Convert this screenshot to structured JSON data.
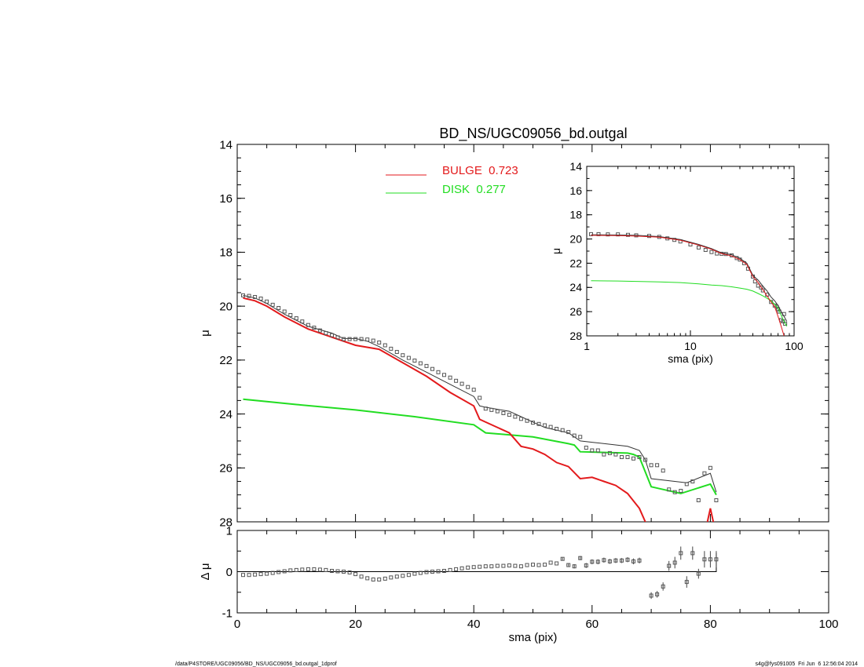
{
  "figure": {
    "title": "BD_NS/UGC09056_bd.outgal",
    "footer_left": "/data/P4STORE/UGC09056/BD_NS/UGC09056_bd.outgal_1dprof",
    "footer_right": "s4g@fys091005  Fri Jun  6 12:56:04 2014"
  },
  "colors": {
    "bulge": "#e31a1c",
    "disk": "#22dd22",
    "model": "#333333",
    "data": "#555555"
  },
  "chart_data": [
    {
      "id": "main",
      "type": "line",
      "title": "BD_NS/UGC09056_bd.outgal",
      "xlabel": "",
      "ylabel": "μ",
      "xlim": [
        0,
        100
      ],
      "ylim": [
        28,
        14
      ],
      "y_inverted": true,
      "xticks": [],
      "yticks": [
        14,
        16,
        18,
        20,
        22,
        24,
        26,
        28
      ],
      "legend": [
        {
          "label": "BULGE  0.723",
          "color": "#e31a1c"
        },
        {
          "label": "DISK  0.277",
          "color": "#22dd22"
        }
      ],
      "series": [
        {
          "name": "BULGE",
          "x": [
            1,
            3,
            5,
            8,
            12,
            16,
            20,
            24,
            28,
            32,
            36,
            40,
            41,
            42,
            46,
            48,
            50,
            52,
            54,
            56,
            58,
            60,
            62,
            64,
            66,
            68,
            69,
            70,
            79,
            80,
            81
          ],
          "y": [
            19.7,
            19.8,
            20.0,
            20.4,
            20.85,
            21.15,
            21.45,
            21.6,
            22.1,
            22.6,
            23.2,
            23.7,
            24.2,
            24.3,
            24.7,
            25.2,
            25.3,
            25.5,
            25.8,
            25.95,
            26.4,
            26.35,
            26.5,
            26.65,
            26.95,
            27.5,
            28.0,
            28.5,
            28.5,
            27.5,
            28.5
          ]
        },
        {
          "name": "DISK",
          "x": [
            1,
            10,
            20,
            30,
            40,
            42,
            50,
            56,
            57,
            58,
            66,
            67,
            68,
            70,
            75,
            80,
            81
          ],
          "y": [
            23.45,
            23.65,
            23.85,
            24.1,
            24.4,
            24.7,
            24.85,
            25.1,
            25.15,
            25.4,
            25.45,
            25.5,
            25.6,
            26.7,
            26.95,
            26.6,
            27.0
          ]
        },
        {
          "name": "model",
          "x": [
            1,
            3,
            5,
            8,
            12,
            16,
            18,
            20,
            22,
            24,
            28,
            32,
            36,
            40,
            41,
            42,
            46,
            48,
            50,
            52,
            56,
            58,
            60,
            66,
            68,
            69,
            70,
            76,
            80,
            81
          ],
          "y": [
            19.6,
            19.7,
            19.9,
            20.3,
            20.75,
            21.0,
            21.2,
            21.2,
            21.3,
            21.5,
            22.0,
            22.45,
            22.9,
            23.35,
            23.7,
            23.75,
            23.9,
            24.1,
            24.3,
            24.5,
            24.7,
            25.0,
            25.05,
            25.2,
            25.35,
            25.7,
            26.4,
            26.55,
            26.2,
            26.9
          ]
        },
        {
          "name": "data",
          "x": [
            1,
            2,
            3,
            4,
            5,
            6,
            7,
            8,
            9,
            10,
            11,
            12,
            13,
            14,
            15,
            16,
            17,
            18,
            19,
            20,
            21,
            22,
            23,
            24,
            25,
            26,
            27,
            28,
            29,
            30,
            31,
            32,
            33,
            34,
            35,
            36,
            37,
            38,
            39,
            40,
            41,
            42,
            43,
            44,
            45,
            46,
            47,
            48,
            49,
            50,
            51,
            52,
            53,
            54,
            55,
            56,
            57,
            58,
            59,
            60,
            61,
            62,
            63,
            64,
            65,
            66,
            67,
            68,
            69,
            70,
            71,
            72,
            73,
            74,
            75,
            76,
            77,
            78,
            79,
            80,
            81
          ],
          "y": [
            19.6,
            19.62,
            19.66,
            19.72,
            19.83,
            19.95,
            20.07,
            20.2,
            20.33,
            20.45,
            20.57,
            20.7,
            20.8,
            20.9,
            21.0,
            21.08,
            21.16,
            21.22,
            21.22,
            21.22,
            21.22,
            21.24,
            21.28,
            21.35,
            21.45,
            21.58,
            21.7,
            21.82,
            21.92,
            22.02,
            22.12,
            22.22,
            22.33,
            22.45,
            22.55,
            22.65,
            22.77,
            22.88,
            23.0,
            23.1,
            23.4,
            23.8,
            23.85,
            23.9,
            23.97,
            24.03,
            24.1,
            24.18,
            24.25,
            24.32,
            24.37,
            24.42,
            24.48,
            24.55,
            24.6,
            24.67,
            24.8,
            24.85,
            25.25,
            25.35,
            25.35,
            25.5,
            25.45,
            25.5,
            25.6,
            25.6,
            25.65,
            25.6,
            25.7,
            25.9,
            25.9,
            26.1,
            26.8,
            26.9,
            26.85,
            26.6,
            26.5,
            27.2,
            26.2,
            26.0,
            27.2
          ]
        }
      ]
    },
    {
      "id": "residual",
      "type": "scatter",
      "xlabel": "sma (pix)",
      "ylabel": "Δ μ",
      "xlim": [
        0,
        100
      ],
      "ylim": [
        -1,
        1
      ],
      "xticks": [
        0,
        20,
        40,
        60,
        80,
        100
      ],
      "yticks": [
        -1,
        0,
        1
      ],
      "series": [
        {
          "name": "residual",
          "x": [
            1,
            2,
            3,
            4,
            5,
            6,
            7,
            8,
            9,
            10,
            11,
            12,
            13,
            14,
            15,
            16,
            17,
            18,
            19,
            20,
            21,
            22,
            23,
            24,
            25,
            26,
            27,
            28,
            29,
            30,
            31,
            32,
            33,
            34,
            35,
            36,
            37,
            38,
            39,
            40,
            41,
            42,
            43,
            44,
            45,
            46,
            47,
            48,
            49,
            50,
            51,
            52,
            53,
            54,
            55,
            56,
            57,
            58,
            59,
            60,
            61,
            62,
            63,
            64,
            65,
            66,
            67,
            68,
            69,
            70,
            71,
            72,
            73,
            74,
            75,
            76,
            77,
            78,
            79,
            80,
            81
          ],
          "y": [
            -0.08,
            -0.08,
            -0.07,
            -0.06,
            -0.05,
            -0.03,
            -0.01,
            0.01,
            0.03,
            0.04,
            0.05,
            0.06,
            0.06,
            0.05,
            0.04,
            0.02,
            0.01,
            0.0,
            -0.02,
            -0.06,
            -0.12,
            -0.16,
            -0.19,
            -0.19,
            -0.17,
            -0.14,
            -0.12,
            -0.1,
            -0.08,
            -0.05,
            -0.03,
            -0.01,
            0.0,
            0.01,
            0.02,
            0.04,
            0.06,
            0.08,
            0.1,
            0.11,
            0.12,
            0.13,
            0.13,
            0.14,
            0.14,
            0.15,
            0.14,
            0.13,
            0.16,
            0.17,
            0.16,
            0.17,
            0.22,
            0.2,
            0.31,
            0.16,
            0.13,
            0.33,
            0.15,
            0.24,
            0.24,
            0.28,
            0.25,
            0.27,
            0.27,
            0.29,
            0.25,
            0.27,
            null,
            -0.58,
            -0.55,
            -0.36,
            0.14,
            0.22,
            0.45,
            -0.25,
            0.45,
            -0.05,
            0.3,
            0.3,
            0.3
          ],
          "err": [
            0,
            0,
            0,
            0,
            0,
            0,
            0,
            0,
            0,
            0,
            0,
            0,
            0,
            0,
            0,
            0,
            0,
            0,
            0,
            0,
            0,
            0,
            0,
            0,
            0,
            0,
            0,
            0,
            0,
            0,
            0,
            0,
            0,
            0,
            0,
            0,
            0,
            0,
            0,
            0,
            0,
            0,
            0,
            0,
            0,
            0,
            0,
            0,
            0,
            0,
            0,
            0,
            0,
            0,
            0.03,
            0.03,
            0.05,
            0.05,
            0.06,
            0.06,
            0.06,
            0.06,
            0.06,
            0.06,
            0.06,
            0.06,
            0.07,
            0.07,
            0,
            0.08,
            0.08,
            0.1,
            0.12,
            0.14,
            0.16,
            0.14,
            0.16,
            0.12,
            0.2,
            0.2,
            0.2
          ]
        }
      ]
    },
    {
      "id": "inset",
      "type": "line",
      "xlabel": "sma (pix)",
      "ylabel": "μ",
      "xscale": "log",
      "xlim": [
        1,
        100
      ],
      "ylim": [
        28,
        14
      ],
      "y_inverted": true,
      "xticks": [
        1,
        10,
        100
      ],
      "yticks": [
        14,
        16,
        18,
        20,
        22,
        24,
        26,
        28
      ],
      "series": [
        {
          "name": "BULGE",
          "x": [
            1.1,
            2,
            3,
            5,
            8,
            12,
            16,
            20,
            25,
            30,
            35,
            40,
            45,
            50,
            55,
            60,
            65,
            70,
            75,
            80
          ],
          "y": [
            19.7,
            19.72,
            19.76,
            19.85,
            20.1,
            20.5,
            20.85,
            21.2,
            21.4,
            21.7,
            22.1,
            23.1,
            23.6,
            24.2,
            24.7,
            25.2,
            25.6,
            26.4,
            27.2,
            28.0
          ]
        },
        {
          "name": "DISK",
          "x": [
            1.1,
            2,
            3,
            5,
            8,
            12,
            16,
            20,
            25,
            30,
            35,
            40,
            45,
            50,
            55,
            60,
            65,
            70,
            75,
            80,
            85
          ],
          "y": [
            23.45,
            23.47,
            23.5,
            23.55,
            23.6,
            23.7,
            23.8,
            23.85,
            23.95,
            24.05,
            24.15,
            24.3,
            24.5,
            24.7,
            24.9,
            25.1,
            25.4,
            25.7,
            26.3,
            26.8,
            27.2
          ]
        },
        {
          "name": "model",
          "x": [
            1.1,
            2,
            3,
            5,
            8,
            12,
            16,
            20,
            25,
            30,
            35,
            40,
            45,
            50,
            55,
            60,
            65,
            70,
            75,
            80,
            85
          ],
          "y": [
            19.65,
            19.67,
            19.7,
            19.8,
            20.05,
            20.45,
            20.8,
            21.15,
            21.3,
            21.6,
            22.0,
            23.0,
            23.4,
            23.9,
            24.3,
            24.8,
            25.1,
            25.5,
            26.0,
            26.4,
            26.8
          ]
        },
        {
          "name": "data",
          "x": [
            1.1,
            1.3,
            1.6,
            2,
            2.5,
            3,
            4,
            5,
            6,
            7,
            8,
            10,
            12,
            14,
            16,
            18,
            20,
            22,
            25,
            28,
            30,
            33,
            36,
            40,
            42,
            45,
            48,
            50,
            55,
            60,
            65,
            68,
            70,
            72,
            75,
            78,
            80,
            82
          ],
          "y": [
            19.6,
            19.6,
            19.62,
            19.62,
            19.66,
            19.7,
            19.75,
            19.83,
            19.95,
            20.07,
            20.2,
            20.45,
            20.7,
            20.9,
            21.08,
            21.2,
            21.22,
            21.24,
            21.35,
            21.58,
            21.7,
            22.0,
            22.45,
            23.1,
            23.5,
            23.85,
            24.0,
            24.25,
            24.6,
            25.2,
            25.5,
            25.6,
            25.8,
            26.0,
            26.7,
            26.8,
            26.2,
            27.0
          ]
        }
      ]
    }
  ]
}
